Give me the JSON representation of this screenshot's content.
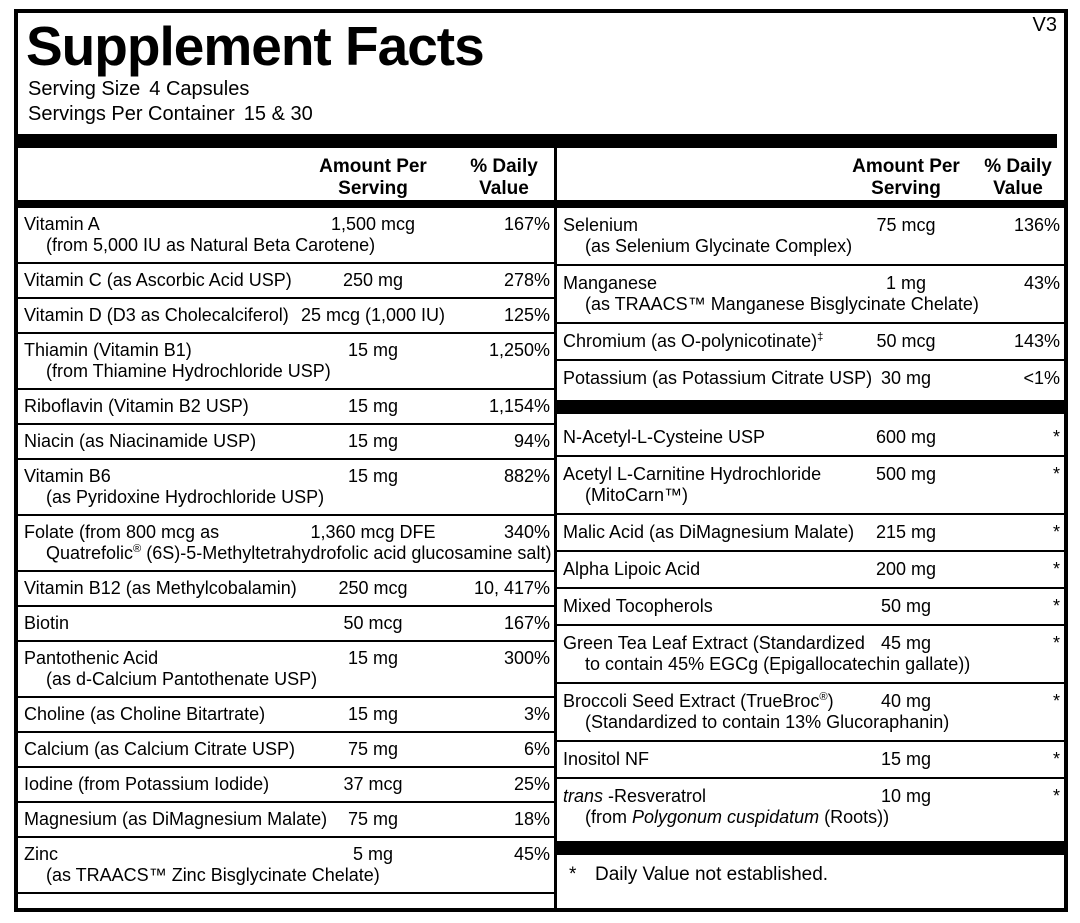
{
  "version": "V3",
  "title": "Supplement Facts",
  "serving_info": {
    "serving_size_label": "Serving Size",
    "serving_size_value": "4 Capsules",
    "servings_per_container_label": "Servings Per Container",
    "servings_per_container_value": "15 & 30"
  },
  "column_headers": {
    "amount_line1": "Amount Per",
    "amount_line2": "Serving",
    "dv_line1": "% Daily",
    "dv_line2": "Value"
  },
  "left_column": {
    "rows": [
      {
        "name": [
          {
            "t": "Vitamin A"
          }
        ],
        "sub": [
          {
            "t": "(from 5,000 IU as Natural Beta Carotene)"
          }
        ],
        "amount": "1,500 mcg",
        "dv": "167%"
      },
      {
        "name": [
          {
            "t": "Vitamin C (as Ascorbic Acid USP)"
          }
        ],
        "amount": "250 mg",
        "dv": "278%"
      },
      {
        "name": [
          {
            "t": "Vitamin D (D3 as Cholecalciferol)"
          }
        ],
        "amount": "25 mcg (1,000 IU)",
        "dv": "125%"
      },
      {
        "name": [
          {
            "t": "Thiamin (Vitamin B1)"
          }
        ],
        "sub": [
          {
            "t": "(from Thiamine Hydrochloride USP)"
          }
        ],
        "amount": "15 mg",
        "dv": "1,250%"
      },
      {
        "name": [
          {
            "t": "Riboflavin (Vitamin B2 USP)"
          }
        ],
        "amount": "15 mg",
        "dv": "1,154%"
      },
      {
        "name": [
          {
            "t": "Niacin (as Niacinamide USP)"
          }
        ],
        "amount": "15 mg",
        "dv": "94%"
      },
      {
        "name": [
          {
            "t": "Vitamin B6"
          }
        ],
        "sub": [
          {
            "t": "(as Pyridoxine Hydrochloride USP)"
          }
        ],
        "amount": "15 mg",
        "dv": "882%"
      },
      {
        "name": [
          {
            "t": "Folate (from 800 mcg as"
          }
        ],
        "sub": [
          {
            "t": "Quatrefolic"
          },
          {
            "t": "®",
            "s": "sup"
          },
          {
            "t": " (6S)-5-Methyltetrahydrofolic acid glucosamine salt)"
          }
        ],
        "amount": "1,360 mcg DFE",
        "dv": "340%"
      },
      {
        "name": [
          {
            "t": "Vitamin B12 (as Methylcobalamin)"
          }
        ],
        "amount": "250 mcg",
        "dv": "10, 417%"
      },
      {
        "name": [
          {
            "t": "Biotin"
          }
        ],
        "amount": "50 mcg",
        "dv": "167%"
      },
      {
        "name": [
          {
            "t": "Pantothenic Acid"
          }
        ],
        "sub": [
          {
            "t": "(as d-Calcium Pantothenate USP)"
          }
        ],
        "amount": "15 mg",
        "dv": "300%"
      },
      {
        "name": [
          {
            "t": "Choline (as Choline Bitartrate)"
          }
        ],
        "amount": "15 mg",
        "dv": "3%"
      },
      {
        "name": [
          {
            "t": "Calcium (as Calcium Citrate USP)"
          }
        ],
        "amount": "75 mg",
        "dv": "6%"
      },
      {
        "name": [
          {
            "t": "Iodine (from Potassium Iodide)"
          }
        ],
        "amount": "37 mcg",
        "dv": "25%"
      },
      {
        "name": [
          {
            "t": "Magnesium (as DiMagnesium Malate)"
          }
        ],
        "amount": "75 mg",
        "dv": "18%"
      },
      {
        "name": [
          {
            "t": "Zinc"
          }
        ],
        "sub": [
          {
            "t": "(as TRAACS™ Zinc Bisglycinate Chelate)"
          }
        ],
        "amount": "5 mg",
        "dv": "45%"
      }
    ]
  },
  "right_column": {
    "top_rows": [
      {
        "name": [
          {
            "t": "Selenium"
          }
        ],
        "sub": [
          {
            "t": "(as Selenium Glycinate Complex)"
          }
        ],
        "amount": "75 mcg",
        "dv": "136%"
      },
      {
        "name": [
          {
            "t": "Manganese"
          }
        ],
        "sub": [
          {
            "t": "(as TRAACS™ Manganese Bisglycinate Chelate)"
          }
        ],
        "amount": "1 mg",
        "dv": "43%"
      },
      {
        "name": [
          {
            "t": "Chromium (as O-polynicotinate)"
          },
          {
            "t": "‡",
            "s": "sup"
          }
        ],
        "amount": "50 mcg",
        "dv": "143%"
      },
      {
        "name": [
          {
            "t": "Potassium (as Potassium Citrate USP)"
          }
        ],
        "amount": "30 mg",
        "dv": "<1%"
      }
    ],
    "bottom_rows": [
      {
        "name": [
          {
            "t": "N-Acetyl-L-Cysteine USP"
          }
        ],
        "amount": "600 mg",
        "dv": "*"
      },
      {
        "name": [
          {
            "t": "Acetyl L-Carnitine Hydrochloride"
          }
        ],
        "sub": [
          {
            "t": "(MitoCarn™)"
          }
        ],
        "amount": "500 mg",
        "dv": "*"
      },
      {
        "name": [
          {
            "t": "Malic Acid (as DiMagnesium Malate)"
          }
        ],
        "amount": "215 mg",
        "dv": "*"
      },
      {
        "name": [
          {
            "t": "Alpha Lipoic Acid"
          }
        ],
        "amount": "200 mg",
        "dv": "*"
      },
      {
        "name": [
          {
            "t": "Mixed Tocopherols"
          }
        ],
        "amount": "50 mg",
        "dv": "*"
      },
      {
        "name": [
          {
            "t": "Green Tea Leaf Extract (Standardized"
          }
        ],
        "sub": [
          {
            "t": "to contain 45% EGCg (Epigallocatechin gallate))"
          }
        ],
        "amount": "45 mg",
        "dv": "*"
      },
      {
        "name": [
          {
            "t": "Broccoli Seed Extract (TrueBroc"
          },
          {
            "t": "®",
            "s": "sup"
          },
          {
            "t": ")"
          }
        ],
        "sub": [
          {
            "t": "(Standardized to contain 13% Glucoraphanin)"
          }
        ],
        "amount": "40 mg",
        "dv": "*"
      },
      {
        "name": [
          {
            "t": "Inositol NF"
          }
        ],
        "amount": "15 mg",
        "dv": "*"
      },
      {
        "name": [
          {
            "t": "trans",
            "s": "i"
          },
          {
            "t": " -Resveratrol"
          }
        ],
        "sub": [
          {
            "t": "(from "
          },
          {
            "t": "Polygonum cuspidatum",
            "s": "i"
          },
          {
            "t": " (Roots))"
          }
        ],
        "amount": "10 mg",
        "dv": "*"
      }
    ]
  },
  "footnote": {
    "marker": "*",
    "text": "Daily Value not established."
  },
  "colors": {
    "text": "#000000",
    "background": "#ffffff",
    "rule": "#000000"
  }
}
